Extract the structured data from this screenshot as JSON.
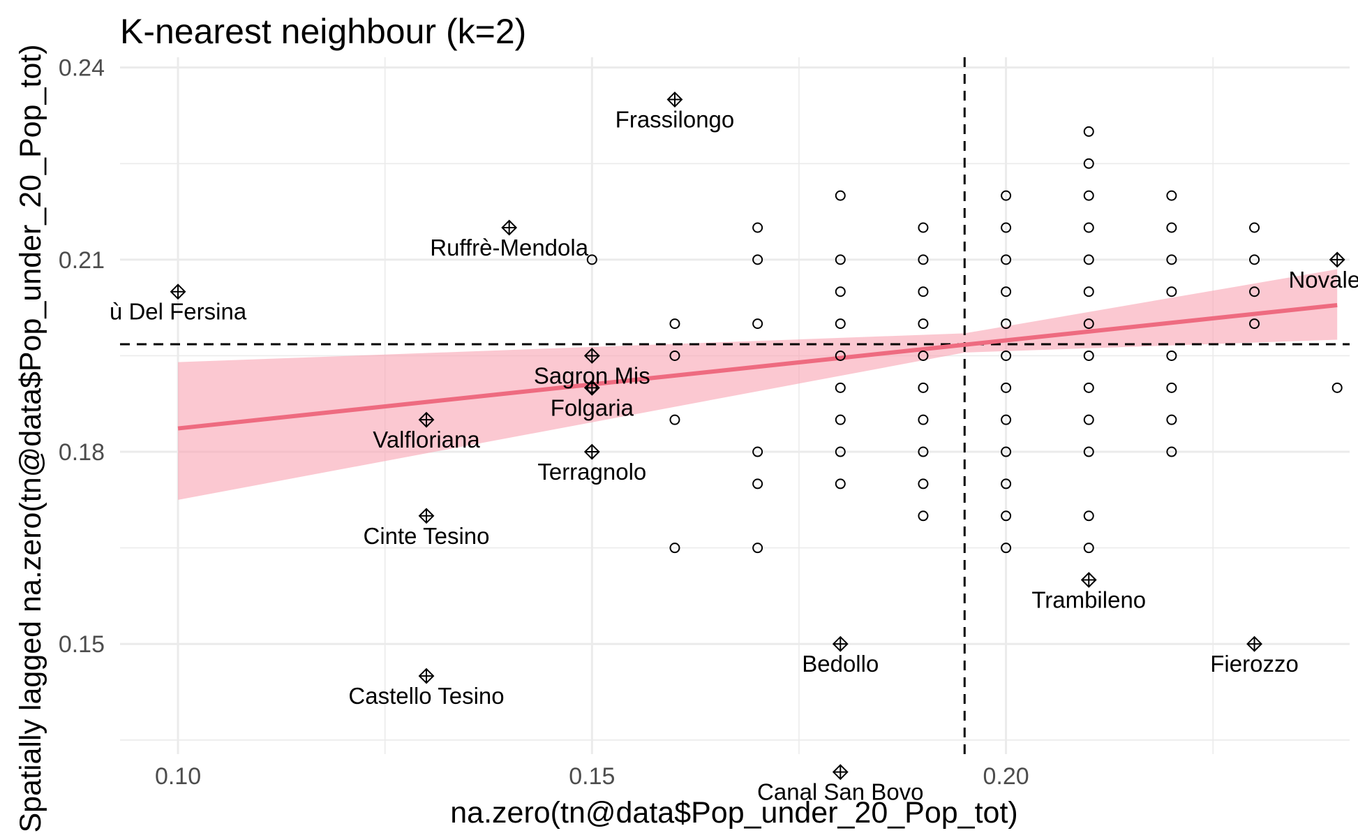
{
  "chart_data": {
    "type": "scatter",
    "title": "K-nearest neighbour (k=2)",
    "xlabel": "na.zero(tn@data$Pop_under_20_Pop_tot)",
    "ylabel": "Spatially lagged na.zero(tn@data$Pop_under_20_Pop_tot)",
    "xlim": [
      0.093,
      0.2415
    ],
    "ylim": [
      0.1328,
      0.2416
    ],
    "x_ticks": [
      0.1,
      0.15,
      0.2
    ],
    "x_tick_labels": [
      "0.10",
      "0.15",
      "0.20"
    ],
    "y_ticks": [
      0.15,
      0.18,
      0.21,
      0.24
    ],
    "y_tick_labels": [
      "0.15",
      "0.18",
      "0.21",
      "0.24"
    ],
    "grid": true,
    "mean_x": 0.195,
    "mean_y": 0.1968,
    "regression": {
      "x_range": [
        0.1,
        0.24
      ],
      "intercept": 0.1699,
      "slope": 0.1375,
      "ci_lower": [
        [
          0.1,
          0.1725
        ],
        [
          0.195,
          0.1955
        ],
        [
          0.24,
          0.1975
        ]
      ],
      "ci_upper": [
        [
          0.1,
          0.194
        ],
        [
          0.195,
          0.1985
        ],
        [
          0.24,
          0.2085
        ]
      ]
    },
    "points": [
      [
        0.15,
        0.21
      ],
      [
        0.15,
        0.19
      ],
      [
        0.16,
        0.2
      ],
      [
        0.16,
        0.195
      ],
      [
        0.16,
        0.185
      ],
      [
        0.16,
        0.165
      ],
      [
        0.17,
        0.215
      ],
      [
        0.17,
        0.21
      ],
      [
        0.17,
        0.2
      ],
      [
        0.17,
        0.18
      ],
      [
        0.17,
        0.175
      ],
      [
        0.17,
        0.165
      ],
      [
        0.18,
        0.22
      ],
      [
        0.18,
        0.21
      ],
      [
        0.18,
        0.205
      ],
      [
        0.18,
        0.2
      ],
      [
        0.18,
        0.195
      ],
      [
        0.18,
        0.19
      ],
      [
        0.18,
        0.185
      ],
      [
        0.18,
        0.18
      ],
      [
        0.18,
        0.175
      ],
      [
        0.19,
        0.215
      ],
      [
        0.19,
        0.21
      ],
      [
        0.19,
        0.205
      ],
      [
        0.19,
        0.2
      ],
      [
        0.19,
        0.195
      ],
      [
        0.19,
        0.19
      ],
      [
        0.19,
        0.185
      ],
      [
        0.19,
        0.18
      ],
      [
        0.19,
        0.175
      ],
      [
        0.19,
        0.17
      ],
      [
        0.2,
        0.22
      ],
      [
        0.2,
        0.215
      ],
      [
        0.2,
        0.21
      ],
      [
        0.2,
        0.205
      ],
      [
        0.2,
        0.2
      ],
      [
        0.2,
        0.195
      ],
      [
        0.2,
        0.19
      ],
      [
        0.2,
        0.185
      ],
      [
        0.2,
        0.18
      ],
      [
        0.2,
        0.175
      ],
      [
        0.2,
        0.17
      ],
      [
        0.2,
        0.165
      ],
      [
        0.21,
        0.23
      ],
      [
        0.21,
        0.225
      ],
      [
        0.21,
        0.22
      ],
      [
        0.21,
        0.215
      ],
      [
        0.21,
        0.21
      ],
      [
        0.21,
        0.205
      ],
      [
        0.21,
        0.2
      ],
      [
        0.21,
        0.195
      ],
      [
        0.21,
        0.19
      ],
      [
        0.21,
        0.185
      ],
      [
        0.21,
        0.18
      ],
      [
        0.21,
        0.17
      ],
      [
        0.21,
        0.165
      ],
      [
        0.22,
        0.22
      ],
      [
        0.22,
        0.215
      ],
      [
        0.22,
        0.21
      ],
      [
        0.22,
        0.205
      ],
      [
        0.22,
        0.195
      ],
      [
        0.22,
        0.19
      ],
      [
        0.22,
        0.185
      ],
      [
        0.22,
        0.18
      ],
      [
        0.23,
        0.215
      ],
      [
        0.23,
        0.21
      ],
      [
        0.23,
        0.205
      ],
      [
        0.23,
        0.2
      ],
      [
        0.24,
        0.19
      ]
    ],
    "influential_points": [
      {
        "x": 0.16,
        "y": 0.235,
        "label": "Frassilongo"
      },
      {
        "x": 0.14,
        "y": 0.215,
        "label": "Ruffrè-Mendola"
      },
      {
        "x": 0.1,
        "y": 0.205,
        "label": "ù Del Fersina"
      },
      {
        "x": 0.15,
        "y": 0.195,
        "label": "Sagron Mis"
      },
      {
        "x": 0.15,
        "y": 0.19,
        "label": "Folgaria"
      },
      {
        "x": 0.13,
        "y": 0.185,
        "label": "Valfloriana"
      },
      {
        "x": 0.15,
        "y": 0.18,
        "label": "Terragnolo"
      },
      {
        "x": 0.13,
        "y": 0.17,
        "label": "Cinte Tesino"
      },
      {
        "x": 0.13,
        "y": 0.145,
        "label": "Castello Tesino"
      },
      {
        "x": 0.18,
        "y": 0.15,
        "label": "Bedollo"
      },
      {
        "x": 0.18,
        "y": 0.13,
        "label": "Canal San Bovo"
      },
      {
        "x": 0.21,
        "y": 0.16,
        "label": "Trambileno"
      },
      {
        "x": 0.23,
        "y": 0.15,
        "label": "Fierozzo"
      },
      {
        "x": 0.24,
        "y": 0.21,
        "label": "Novaledo"
      }
    ]
  }
}
